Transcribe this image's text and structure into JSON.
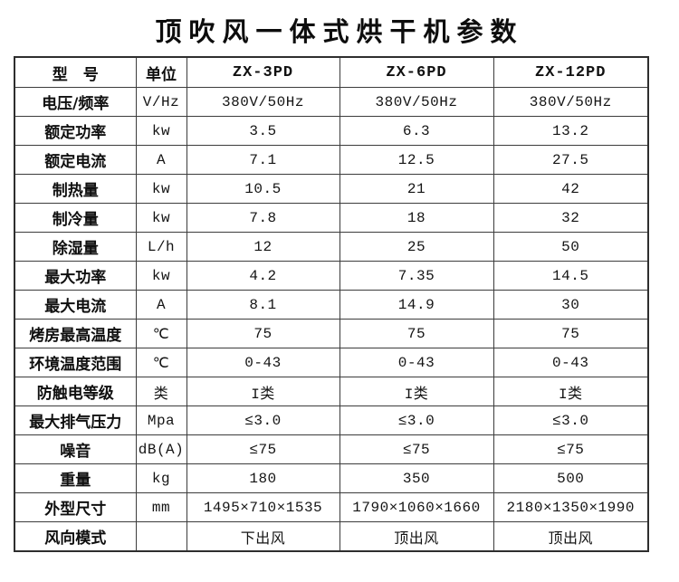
{
  "page": {
    "title": "顶吹风一体式烘干机参数"
  },
  "colors": {
    "background": "#ffffff",
    "text": "#111111",
    "border": "#3c3c3c"
  },
  "table": {
    "header": {
      "param": "型　号",
      "unit": "单位",
      "models": [
        "ZX-3PD",
        "ZX-6PD",
        "ZX-12PD"
      ]
    },
    "rows": [
      {
        "param": "电压/频率",
        "unit": "V/Hz",
        "values": [
          "380V/50Hz",
          "380V/50Hz",
          "380V/50Hz"
        ]
      },
      {
        "param": "额定功率",
        "unit": "kw",
        "values": [
          "3.5",
          "6.3",
          "13.2"
        ]
      },
      {
        "param": "额定电流",
        "unit": "A",
        "values": [
          "7.1",
          "12.5",
          "27.5"
        ]
      },
      {
        "param": "制热量",
        "unit": "kw",
        "values": [
          "10.5",
          "21",
          "42"
        ]
      },
      {
        "param": "制冷量",
        "unit": "kw",
        "values": [
          "7.8",
          "18",
          "32"
        ]
      },
      {
        "param": "除湿量",
        "unit": "L/h",
        "values": [
          "12",
          "25",
          "50"
        ]
      },
      {
        "param": "最大功率",
        "unit": "kw",
        "values": [
          "4.2",
          "7.35",
          "14.5"
        ]
      },
      {
        "param": "最大电流",
        "unit": "A",
        "values": [
          "8.1",
          "14.9",
          "30"
        ]
      },
      {
        "param": "烤房最高温度",
        "unit": "℃",
        "values": [
          "75",
          "75",
          "75"
        ]
      },
      {
        "param": "环境温度范围",
        "unit": "℃",
        "values": [
          "0-43",
          "0-43",
          "0-43"
        ]
      },
      {
        "param": "防触电等级",
        "unit": "类",
        "values": [
          "I类",
          "I类",
          "I类"
        ]
      },
      {
        "param": "最大排气压力",
        "unit": "Mpa",
        "values": [
          "≤3.0",
          "≤3.0",
          "≤3.0"
        ]
      },
      {
        "param": "噪音",
        "unit": "dB(A)",
        "values": [
          "≤75",
          "≤75",
          "≤75"
        ]
      },
      {
        "param": "重量",
        "unit": "kg",
        "values": [
          "180",
          "350",
          "500"
        ]
      },
      {
        "param": "外型尺寸",
        "unit": "mm",
        "values": [
          "1495×710×1535",
          "1790×1060×1660",
          "2180×1350×1990"
        ]
      },
      {
        "param": "风向模式",
        "unit": "",
        "values": [
          "下出风",
          "顶出风",
          "顶出风"
        ]
      }
    ]
  }
}
